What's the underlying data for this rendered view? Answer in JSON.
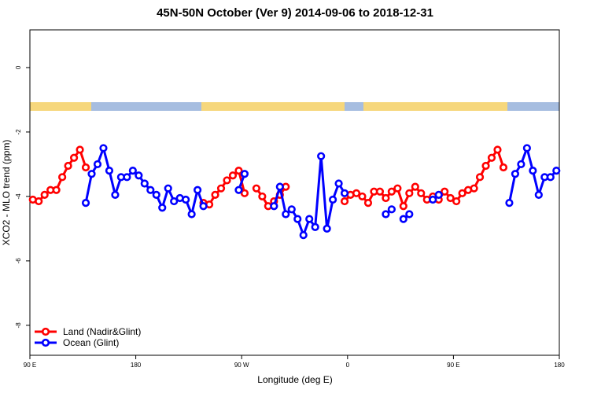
{
  "chart_data": {
    "type": "line",
    "title": "45N-50N October (Ver 9)   2014-09-06 to 2018-12-31",
    "x_label": "Longitude (deg E)",
    "y_label": "XCO2 - MLO trend (ppm)",
    "x": [
      -267.5,
      -262.5,
      -257.5,
      -252.5,
      -247.5,
      -242.5,
      -237.5,
      -232.5,
      -227.5,
      -222.5,
      -217.5,
      -212.5,
      -207.5,
      -202.5,
      -197.5,
      -192.5,
      -187.5,
      -182.5,
      -177.5,
      -172.5,
      -167.5,
      -162.5,
      -157.5,
      -152.5,
      -147.5,
      -142.5,
      -137.5,
      -132.5,
      -127.5,
      -122.5,
      -117.5,
      -112.5,
      -107.5,
      -102.5,
      -97.5,
      -92.5,
      -87.5,
      -82.5,
      -77.5,
      -72.5,
      -67.5,
      -62.5,
      -57.5,
      -52.5,
      -47.5,
      -42.5,
      -37.5,
      -32.5,
      -27.5,
      -22.5,
      -17.5,
      -12.5,
      -7.5,
      -2.5,
      2.5,
      7.5,
      12.5,
      17.5,
      22.5,
      27.5,
      32.5,
      37.5,
      42.5,
      47.5,
      52.5,
      57.5,
      62.5,
      67.5,
      72.5,
      77.5,
      82.5,
      87.5,
      92.5,
      97.5,
      102.5,
      107.5,
      112.5,
      117.5,
      122.5,
      127.5,
      132.5,
      137.5,
      142.5,
      147.5,
      152.5,
      157.5,
      162.5,
      167.5,
      172.5,
      177.5
    ],
    "series": [
      {
        "name": "Land (Nadir&Glint)",
        "color": "#ff0000",
        "values": [
          -4.1,
          -4.15,
          -3.95,
          -3.8,
          -3.8,
          -3.4,
          -3.05,
          -2.8,
          -2.55,
          -3.1,
          null,
          null,
          null,
          null,
          null,
          null,
          null,
          null,
          null,
          null,
          null,
          null,
          null,
          null,
          null,
          null,
          null,
          null,
          null,
          -4.2,
          -4.25,
          -3.95,
          -3.75,
          -3.5,
          -3.35,
          -3.2,
          -3.9,
          null,
          -3.75,
          -4.0,
          -4.3,
          -4.15,
          -3.95,
          -3.7,
          null,
          null,
          null,
          null,
          null,
          null,
          null,
          null,
          null,
          -4.15,
          -3.95,
          -3.9,
          -4.0,
          -4.2,
          -3.85,
          -3.85,
          -4.05,
          -3.85,
          -3.75,
          -4.3,
          -3.9,
          -3.7,
          -3.9,
          -4.1,
          -4.0,
          -4.1,
          -3.85,
          -4.05,
          -4.15,
          -3.9,
          -3.8,
          -3.75,
          -3.4,
          -3.05,
          -2.8,
          -2.55,
          -3.1,
          null,
          null,
          null,
          null,
          null,
          null,
          null,
          null,
          null
        ]
      },
      {
        "name": "Ocean (Glint)",
        "color": "#0000ff",
        "values": [
          null,
          null,
          null,
          null,
          null,
          null,
          null,
          null,
          null,
          -4.2,
          -3.3,
          -3.0,
          -2.5,
          -3.2,
          -3.95,
          -3.4,
          -3.4,
          -3.2,
          -3.35,
          -3.6,
          -3.8,
          -3.95,
          -4.35,
          -3.75,
          -4.15,
          -4.05,
          -4.1,
          -4.55,
          -3.8,
          -4.3,
          null,
          null,
          null,
          null,
          null,
          -3.8,
          -3.3,
          null,
          null,
          null,
          null,
          -4.3,
          -3.7,
          -4.55,
          -4.4,
          -4.7,
          -5.2,
          -4.7,
          -4.95,
          -2.75,
          -5.0,
          -4.1,
          -3.6,
          -3.9,
          null,
          null,
          null,
          null,
          null,
          null,
          -4.55,
          -4.4,
          null,
          -4.7,
          -4.55,
          null,
          null,
          null,
          -4.1,
          -3.95,
          null,
          null,
          null,
          null,
          null,
          null,
          null,
          null,
          null,
          null,
          null,
          -4.2,
          -3.3,
          -3.0,
          -2.5,
          -3.2,
          -3.95,
          -3.4,
          -3.4,
          -3.2
        ]
      }
    ],
    "xlim": [
      -270,
      180
    ],
    "xticks": [
      {
        "value": -270,
        "label": "90 E"
      },
      {
        "value": -180,
        "label": "180"
      },
      {
        "value": -90,
        "label": "90 W"
      },
      0,
      {
        "value": 90,
        "label": "90 E"
      },
      {
        "value": 180,
        "label": "180"
      }
    ],
    "ylim": [
      -8.93,
      1.17
    ],
    "yticks": [
      0,
      -2,
      -4,
      -6,
      -8
    ],
    "legend": "lower left",
    "grid": false
  }
}
